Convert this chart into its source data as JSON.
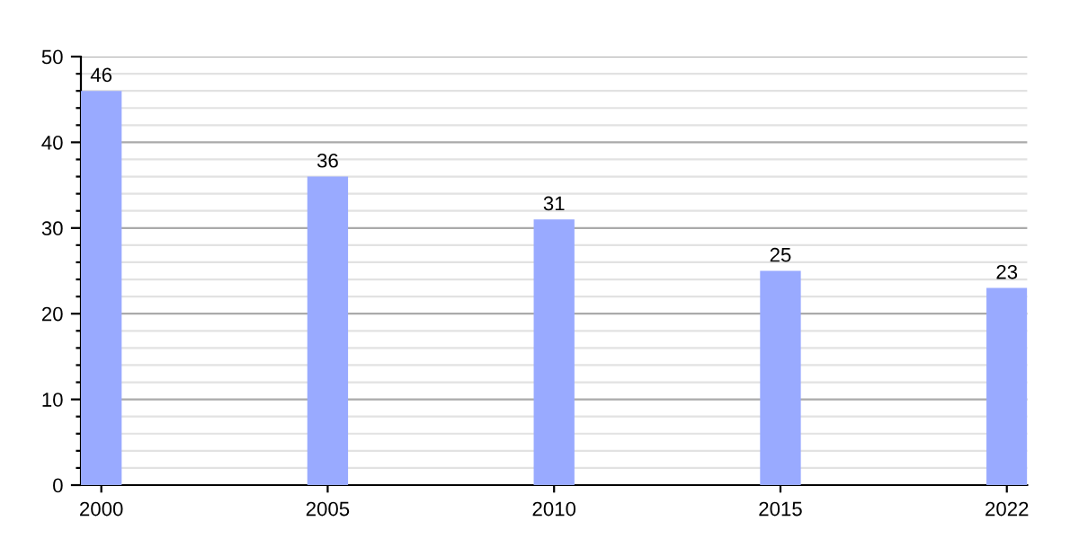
{
  "chart_data": {
    "type": "bar",
    "categories": [
      "2000",
      "2005",
      "2010",
      "2015",
      "2022"
    ],
    "values": [
      46,
      36,
      31,
      25,
      23
    ],
    "color": "#99aaff",
    "ylim": [
      0,
      50
    ],
    "yticks": [
      0,
      {
        "value": 2,
        "label": null
      },
      {
        "value": 4,
        "label": null
      },
      {
        "value": 6,
        "label": null
      },
      {
        "value": 8,
        "label": null
      },
      10,
      {
        "value": 12,
        "label": null
      },
      {
        "value": 14,
        "label": null
      },
      {
        "value": 16,
        "label": null
      },
      {
        "value": 18,
        "label": null
      },
      20,
      {
        "value": 22,
        "label": null
      },
      {
        "value": 24,
        "label": null
      },
      {
        "value": 26,
        "label": null
      },
      {
        "value": 28,
        "label": null
      },
      30,
      {
        "value": 32,
        "label": null
      },
      {
        "value": 34,
        "label": null
      },
      {
        "value": 36,
        "label": null
      },
      {
        "value": 38,
        "label": null
      },
      40,
      {
        "value": 42,
        "label": null
      },
      {
        "value": 44,
        "label": null
      },
      {
        "value": 46,
        "label": null
      },
      {
        "value": 48,
        "label": null
      },
      50
    ],
    "grid": "y",
    "data_labels": true
  }
}
